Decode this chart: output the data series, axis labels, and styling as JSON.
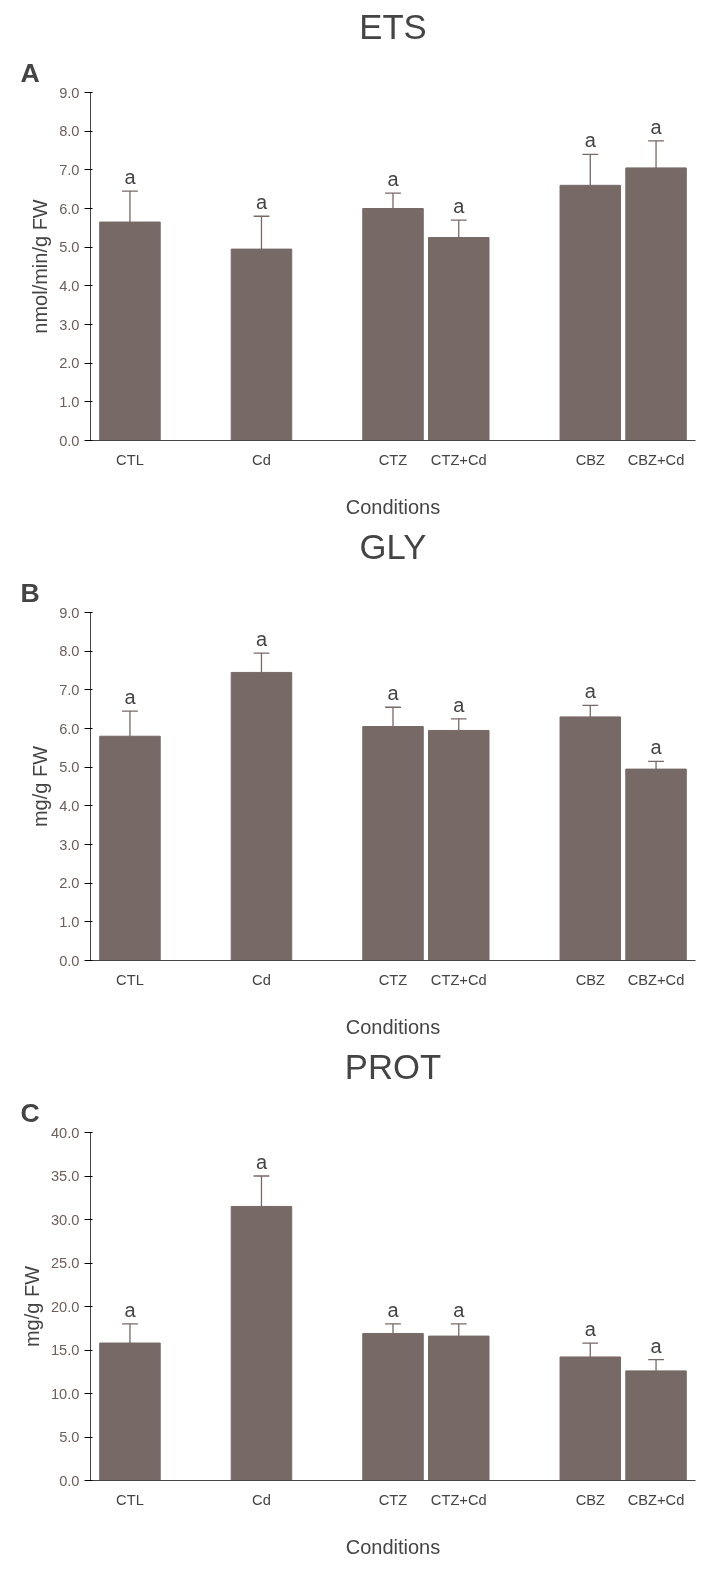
{
  "chart_data": [
    {
      "type": "bar",
      "title": "ETS",
      "xlabel": "Conditions",
      "ylabel": "nmol/min/g FW",
      "color": "#776966",
      "categories": [
        "CTL",
        null,
        "Cd",
        null,
        "CTZ",
        "CTZ+Cd",
        null,
        "CBZ",
        "CBZ+Cd"
      ],
      "values": [
        5.65,
        null,
        4.95,
        null,
        6.0,
        5.25,
        null,
        6.6,
        7.05
      ],
      "errors": [
        [
          5.65,
          6.45
        ],
        null,
        [
          4.95,
          5.8
        ],
        null,
        [
          6.0,
          6.4
        ],
        [
          5.25,
          5.7
        ],
        null,
        [
          6.6,
          7.4
        ],
        [
          7.05,
          7.75
        ]
      ],
      "ylim": [
        0,
        9
      ],
      "yticks": [
        {
          "value": 0,
          "label": "0.0"
        },
        {
          "value": 1,
          "label": "1.0"
        },
        {
          "value": 2,
          "label": "2.0"
        },
        {
          "value": 3,
          "label": "3.0"
        },
        {
          "value": 4,
          "label": "4.0"
        },
        {
          "value": 5,
          "label": "5.0"
        },
        {
          "value": 6,
          "label": "6.0"
        },
        {
          "value": 7,
          "label": "7.0"
        },
        {
          "value": 8,
          "label": "8.0"
        },
        {
          "value": 9,
          "label": "9.0"
        }
      ],
      "annotations": [
        "A",
        {
          "text": "a",
          "x": "CTL",
          "y": 6.45
        },
        {
          "text": "a",
          "x": "Cd",
          "y": 5.8
        },
        {
          "text": "a",
          "x": "CTZ",
          "y": 6.4
        },
        {
          "text": "a",
          "x": "CTZ+Cd",
          "y": 5.7
        },
        {
          "text": "a",
          "x": "CBZ",
          "y": 7.4
        },
        {
          "text": "a",
          "x": "CBZ+Cd",
          "y": 7.75
        }
      ]
    },
    {
      "type": "bar",
      "title": "GLY",
      "xlabel": "Conditions",
      "ylabel": "mg/g FW",
      "color": "#776966",
      "categories": [
        "CTL",
        null,
        "Cd",
        null,
        "CTZ",
        "CTZ+Cd",
        null,
        "CBZ",
        "CBZ+Cd"
      ],
      "values": [
        5.8,
        null,
        7.45,
        null,
        6.05,
        5.95,
        null,
        6.3,
        4.95
      ],
      "errors": [
        [
          5.8,
          6.45
        ],
        null,
        [
          7.45,
          7.95
        ],
        null,
        [
          6.05,
          6.55
        ],
        [
          5.95,
          6.25
        ],
        null,
        [
          6.3,
          6.6
        ],
        [
          4.95,
          5.15
        ]
      ],
      "ylim": [
        0,
        9
      ],
      "yticks": [
        {
          "value": 0,
          "label": "0.0"
        },
        {
          "value": 1,
          "label": "1.0"
        },
        {
          "value": 2,
          "label": "2.0"
        },
        {
          "value": 3,
          "label": "3.0"
        },
        {
          "value": 4,
          "label": "4.0"
        },
        {
          "value": 5,
          "label": "5.0"
        },
        {
          "value": 6,
          "label": "6.0"
        },
        {
          "value": 7,
          "label": "7.0"
        },
        {
          "value": 8,
          "label": "8.0"
        },
        {
          "value": 9,
          "label": "9.0"
        }
      ],
      "annotations": [
        "B",
        {
          "text": "a",
          "x": "CTL",
          "y": 6.45
        },
        {
          "text": "a",
          "x": "Cd",
          "y": 7.95
        },
        {
          "text": "a",
          "x": "CTZ",
          "y": 6.55
        },
        {
          "text": "a",
          "x": "CTZ+Cd",
          "y": 6.25
        },
        {
          "text": "a",
          "x": "CBZ",
          "y": 6.6
        },
        {
          "text": "a",
          "x": "CBZ+Cd",
          "y": 5.15
        }
      ]
    },
    {
      "type": "bar",
      "title": "PROT",
      "xlabel": "Conditions",
      "ylabel": "mg/g FW",
      "color": "#776966",
      "categories": [
        "CTL",
        null,
        "Cd",
        null,
        "CTZ",
        "CTZ+Cd",
        null,
        "CBZ",
        "CBZ+Cd"
      ],
      "values": [
        15.8,
        null,
        31.5,
        null,
        16.9,
        16.6,
        null,
        14.2,
        12.6
      ],
      "errors": [
        [
          15.8,
          18.0
        ],
        null,
        [
          31.5,
          35.0
        ],
        null,
        [
          16.9,
          18.0
        ],
        [
          16.6,
          18.0
        ],
        null,
        [
          14.2,
          15.8
        ],
        [
          12.6,
          13.9
        ]
      ],
      "ylim": [
        0,
        40
      ],
      "yticks": [
        {
          "value": 0,
          "label": "0.0"
        },
        {
          "value": 5,
          "label": "5.0"
        },
        {
          "value": 10,
          "label": "10.0"
        },
        {
          "value": 15,
          "label": "15.0"
        },
        {
          "value": 20,
          "label": "20.0"
        },
        {
          "value": 25,
          "label": "25.0"
        },
        {
          "value": 30,
          "label": "30.0"
        },
        {
          "value": 35,
          "label": "35.0"
        },
        {
          "value": 40,
          "label": "40.0"
        }
      ],
      "annotations": [
        "C",
        {
          "text": "a",
          "x": "CTL",
          "y": 18.0
        },
        {
          "text": "a",
          "x": "Cd",
          "y": 35.0
        },
        {
          "text": "a",
          "x": "CTZ",
          "y": 18.0
        },
        {
          "text": "a",
          "x": "CTZ+Cd",
          "y": 18.0
        },
        {
          "text": "a",
          "x": "CBZ",
          "y": 15.8
        },
        {
          "text": "a",
          "x": "CBZ+Cd",
          "y": 13.9
        }
      ]
    }
  ]
}
